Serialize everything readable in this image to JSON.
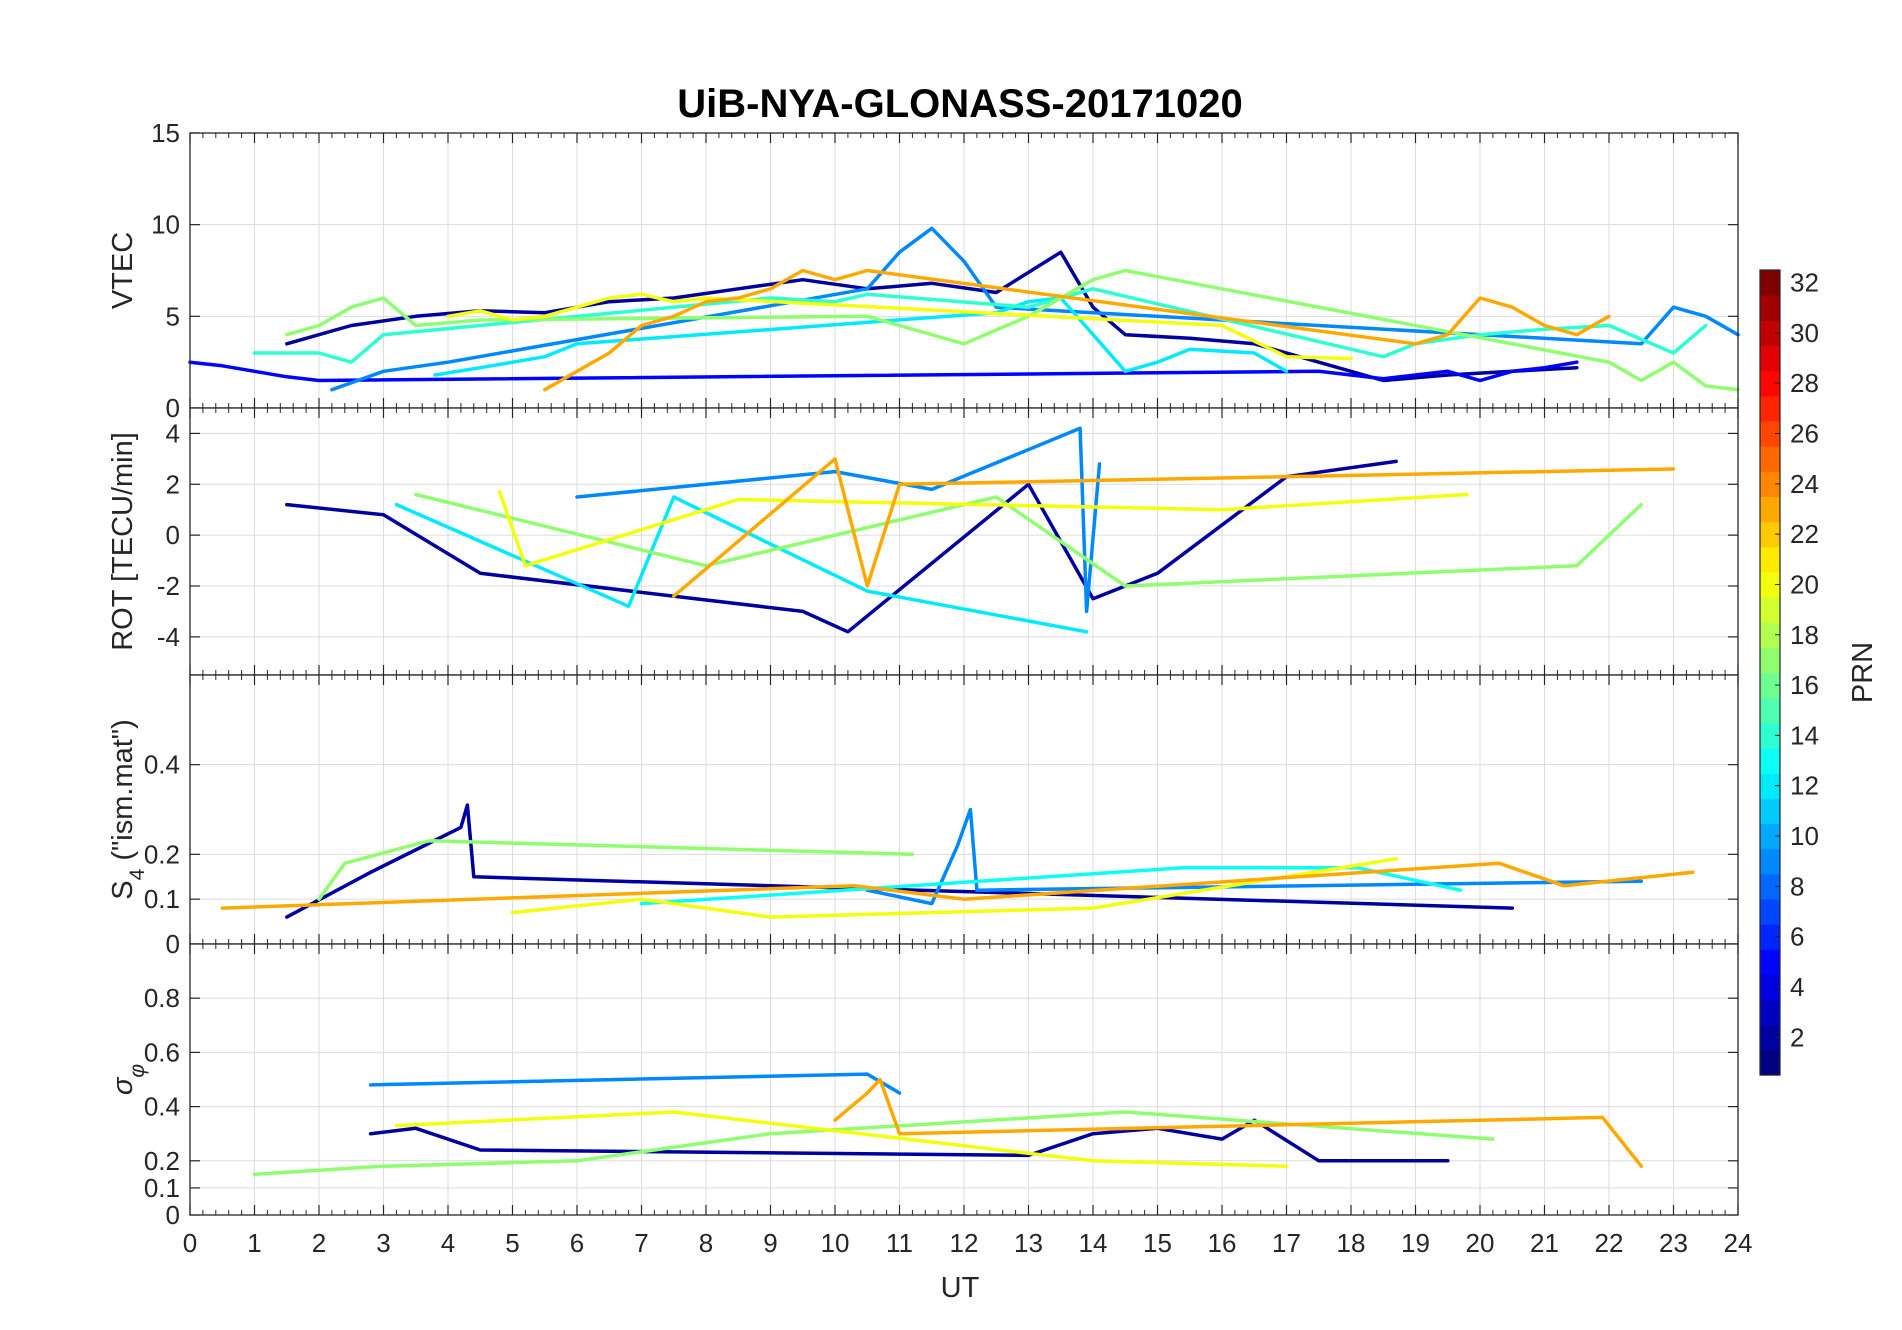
{
  "chart_data": {
    "type": "line",
    "title": "UiB-NYA-GLONASS-20171020",
    "xlabel": "UT",
    "xlim": [
      0,
      24
    ],
    "xticks": [
      "0",
      "1",
      "2",
      "3",
      "4",
      "5",
      "6",
      "7",
      "8",
      "9",
      "10",
      "11",
      "12",
      "13",
      "14",
      "15",
      "16",
      "17",
      "18",
      "19",
      "20",
      "21",
      "22",
      "23",
      "24"
    ],
    "grid": true,
    "panels": [
      {
        "ylabel": "VTEC",
        "ylim": [
          0,
          15
        ],
        "yticks": [
          "0",
          "5",
          "10",
          "15"
        ],
        "series": [
          {
            "prn": 2,
            "x": [
              1.5,
              2.5,
              3.5,
              4.5,
              5.5,
              6.5,
              7.5,
              8.5,
              9.5,
              10.5,
              11.5,
              12.5,
              13.5,
              14.0,
              14.5,
              15.5,
              16.5,
              17.5,
              18.5,
              19.5,
              20.5,
              21.5
            ],
            "y": [
              3.5,
              4.5,
              5.0,
              5.3,
              5.2,
              5.8,
              6.0,
              6.5,
              7.0,
              6.5,
              6.8,
              6.3,
              8.5,
              5.5,
              4.0,
              3.8,
              3.5,
              2.5,
              1.5,
              1.8,
              2.0,
              2.2
            ]
          },
          {
            "prn": 5,
            "x": [
              0.0,
              0.5,
              1.0,
              1.5,
              2.0,
              17.5,
              18.0,
              18.5,
              19.0,
              19.5,
              20.0,
              20.5,
              21.0,
              21.5
            ],
            "y": [
              2.5,
              2.3,
              2.0,
              1.7,
              1.5,
              2.0,
              1.8,
              1.6,
              1.8,
              2.0,
              1.5,
              2.0,
              2.2,
              2.5
            ]
          },
          {
            "prn": 9,
            "x": [
              2.2,
              3.0,
              4.0,
              10.5,
              11.0,
              11.5,
              12.0,
              12.5,
              22.5,
              23.0,
              23.5,
              24.0
            ],
            "y": [
              1.0,
              2.0,
              2.5,
              6.5,
              8.5,
              9.8,
              8.0,
              5.5,
              3.5,
              5.5,
              5.0,
              4.0
            ]
          },
          {
            "prn": 12,
            "x": [
              3.8,
              4.5,
              5.5,
              6.0,
              12.5,
              13.0,
              13.5,
              14.5,
              15.0,
              15.5,
              16.5,
              17.0
            ],
            "y": [
              1.8,
              2.2,
              2.8,
              3.5,
              5.2,
              5.8,
              6.0,
              2.0,
              2.5,
              3.2,
              3.0,
              2.0
            ]
          },
          {
            "prn": 14,
            "x": [
              1.0,
              2.0,
              2.5,
              3.0,
              9.0,
              10.0,
              10.5,
              13.0,
              14.0,
              18.5,
              19.0,
              20.0,
              21.0,
              22.0,
              23.0,
              23.5
            ],
            "y": [
              3.0,
              3.0,
              2.5,
              4.0,
              6.0,
              5.8,
              6.2,
              5.5,
              6.5,
              2.8,
              3.5,
              4.0,
              4.3,
              4.5,
              3.0,
              4.5
            ]
          },
          {
            "prn": 17,
            "x": [
              1.5,
              2.0,
              2.5,
              3.0,
              3.5,
              4.5,
              10.5,
              11.0,
              12.0,
              13.0,
              14.0,
              14.5,
              22.0,
              22.5,
              23.0,
              23.5,
              24.0
            ],
            "y": [
              4.0,
              4.5,
              5.5,
              6.0,
              4.5,
              4.8,
              5.0,
              4.5,
              3.5,
              5.0,
              7.0,
              7.5,
              2.5,
              1.5,
              2.5,
              1.2,
              1.0
            ]
          },
          {
            "prn": 20,
            "x": [
              4.0,
              4.5,
              5.0,
              5.5,
              6.0,
              6.5,
              7.0,
              7.5,
              8.0,
              16.0,
              17.0,
              18.0
            ],
            "y": [
              5.0,
              5.3,
              4.8,
              5.0,
              5.5,
              6.0,
              6.2,
              5.8,
              6.0,
              4.5,
              2.8,
              2.7
            ]
          },
          {
            "prn": 23,
            "x": [
              5.5,
              6.0,
              6.5,
              7.0,
              7.5,
              8.0,
              8.5,
              9.0,
              9.5,
              10.0,
              10.5,
              19.0,
              19.5,
              20.0,
              20.5,
              21.0,
              21.5,
              22.0
            ],
            "y": [
              1.0,
              2.0,
              3.0,
              4.5,
              5.0,
              5.8,
              6.0,
              6.5,
              7.5,
              7.0,
              7.5,
              3.5,
              4.0,
              6.0,
              5.5,
              4.5,
              4.0,
              5.0
            ]
          }
        ]
      },
      {
        "ylabel": "ROT [TECU/min]",
        "ylim": [
          -5.5,
          5
        ],
        "yticks": [
          "-4",
          "-2",
          "0",
          "2",
          "4"
        ],
        "series": [
          {
            "prn": 2,
            "x": [
              1.5,
              3.0,
              4.5,
              9.5,
              10.2,
              13.0,
              14.0,
              15.0,
              17.0,
              18.7
            ],
            "y": [
              1.2,
              0.8,
              -1.5,
              -3.0,
              -3.8,
              2.0,
              -2.5,
              -1.5,
              2.3,
              2.9
            ]
          },
          {
            "prn": 9,
            "x": [
              6.0,
              10.0,
              11.5,
              13.8,
              13.9,
              14.1
            ],
            "y": [
              1.5,
              2.5,
              1.8,
              4.2,
              -3.0,
              2.8
            ]
          },
          {
            "prn": 12,
            "x": [
              3.2,
              6.8,
              7.5,
              10.5,
              13.9
            ],
            "y": [
              1.2,
              -2.8,
              1.5,
              -2.2,
              -3.8
            ]
          },
          {
            "prn": 17,
            "x": [
              3.5,
              8.0,
              12.5,
              14.5,
              21.5,
              22.5
            ],
            "y": [
              1.6,
              -1.2,
              1.5,
              -2.0,
              -1.2,
              1.2
            ]
          },
          {
            "prn": 20,
            "x": [
              4.8,
              5.2,
              8.5,
              16.0,
              19.8
            ],
            "y": [
              1.7,
              -1.2,
              1.4,
              1.0,
              1.6
            ]
          },
          {
            "prn": 23,
            "x": [
              7.5,
              10.0,
              10.5,
              11.0,
              23.0
            ],
            "y": [
              -2.4,
              3.0,
              -2.0,
              2.0,
              2.6
            ]
          }
        ]
      },
      {
        "ylabel": "S4 (\"ism.mat\")",
        "ylabel_main": "S",
        "ylabel_sub": "4",
        "ylabel_rest": " (\"ism.mat\")",
        "ylim": [
          0,
          0.6
        ],
        "yticks": [
          "0",
          "0.1",
          "0.2",
          "0.4"
        ],
        "series": [
          {
            "prn": 2,
            "x": [
              1.5,
              2.8,
              4.2,
              4.3,
              4.4,
              20.5
            ],
            "y": [
              0.06,
              0.16,
              0.26,
              0.31,
              0.15,
              0.08
            ]
          },
          {
            "prn": 9,
            "x": [
              10.5,
              11.5,
              11.9,
              12.1,
              12.2,
              22.5
            ],
            "y": [
              0.12,
              0.09,
              0.22,
              0.3,
              0.12,
              0.14
            ]
          },
          {
            "prn": 13,
            "x": [
              7.0,
              15.4,
              17.3,
              18.1,
              19.7
            ],
            "y": [
              0.09,
              0.17,
              0.17,
              0.17,
              0.12
            ]
          },
          {
            "prn": 17,
            "x": [
              2.0,
              2.3,
              2.4,
              3.7,
              3.8,
              11.2
            ],
            "y": [
              0.1,
              0.16,
              0.18,
              0.23,
              0.23,
              0.2
            ]
          },
          {
            "prn": 20,
            "x": [
              5.0,
              7.0,
              9.0,
              14.0,
              18.7
            ],
            "y": [
              0.07,
              0.1,
              0.06,
              0.08,
              0.19
            ]
          },
          {
            "prn": 23,
            "x": [
              0.5,
              10.3,
              12.0,
              20.3,
              21.3,
              23.3
            ],
            "y": [
              0.08,
              0.13,
              0.1,
              0.18,
              0.13,
              0.16
            ]
          }
        ]
      },
      {
        "ylabel": "σφ",
        "ylabel_main": "σ",
        "ylabel_sub": "φ",
        "ylim": [
          0,
          1
        ],
        "yticks": [
          "0",
          "0.1",
          "0.2",
          "0.4",
          "0.6",
          "0.8"
        ],
        "series": [
          {
            "prn": 2,
            "x": [
              2.8,
              3.5,
              4.5,
              13.0,
              14.0,
              15.0,
              16.0,
              16.5,
              17.5,
              19.5
            ],
            "y": [
              0.3,
              0.32,
              0.24,
              0.22,
              0.3,
              0.32,
              0.28,
              0.35,
              0.2,
              0.2
            ]
          },
          {
            "prn": 9,
            "x": [
              2.8,
              10.5,
              11.0
            ],
            "y": [
              0.48,
              0.52,
              0.45
            ]
          },
          {
            "prn": 17,
            "x": [
              1.0,
              3.0,
              6.0,
              9.0,
              14.5,
              20.2
            ],
            "y": [
              0.15,
              0.18,
              0.2,
              0.3,
              0.38,
              0.28
            ]
          },
          {
            "prn": 20,
            "x": [
              3.2,
              7.5,
              14.0,
              17.0
            ],
            "y": [
              0.33,
              0.38,
              0.2,
              0.18
            ]
          },
          {
            "prn": 23,
            "x": [
              10.0,
              10.5,
              10.7,
              11.0,
              21.9,
              22.5
            ],
            "y": [
              0.35,
              0.45,
              0.5,
              0.3,
              0.36,
              0.18
            ]
          }
        ]
      }
    ],
    "colorbar": {
      "label": "PRN",
      "colormap": "jet",
      "range": [
        1,
        32
      ],
      "ticks": [
        "2",
        "4",
        "6",
        "8",
        "10",
        "12",
        "14",
        "16",
        "18",
        "20",
        "22",
        "24",
        "26",
        "28",
        "30",
        "32"
      ]
    }
  }
}
